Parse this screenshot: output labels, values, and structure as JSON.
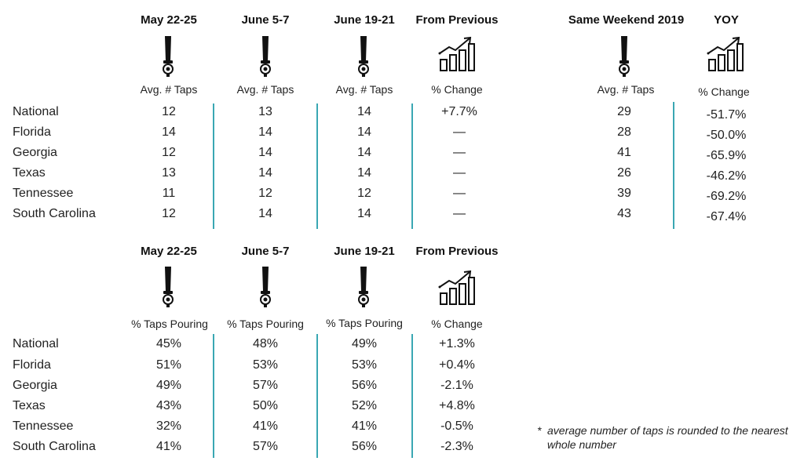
{
  "top": {
    "headers": [
      "May 22-25",
      "June 5-7",
      "June 19-21",
      "From Previous"
    ],
    "subheaders": [
      "Avg. # Taps",
      "Avg. # Taps",
      "Avg. # Taps",
      "% Change"
    ],
    "rows": [
      {
        "label": "National",
        "values": [
          "12",
          "13",
          "14",
          "+7.7%"
        ]
      },
      {
        "label": "Florida",
        "values": [
          "14",
          "14",
          "14",
          "—"
        ]
      },
      {
        "label": "Georgia",
        "values": [
          "12",
          "14",
          "14",
          "—"
        ]
      },
      {
        "label": "Texas",
        "values": [
          "13",
          "14",
          "14",
          "—"
        ]
      },
      {
        "label": "Tennessee",
        "values": [
          "11",
          "12",
          "12",
          "—"
        ]
      },
      {
        "label": "South Carolina",
        "values": [
          "12",
          "14",
          "14",
          "—"
        ]
      }
    ]
  },
  "yoy": {
    "headers": [
      "Same Weekend 2019",
      "YOY"
    ],
    "subheaders": [
      "Avg. # Taps",
      "% Change"
    ],
    "rows": [
      {
        "values": [
          "29",
          "-51.7%"
        ]
      },
      {
        "values": [
          "28",
          "-50.0%"
        ]
      },
      {
        "values": [
          "41",
          "-65.9%"
        ]
      },
      {
        "values": [
          "26",
          "-46.2%"
        ]
      },
      {
        "values": [
          "39",
          "-69.2%"
        ]
      },
      {
        "values": [
          "43",
          "-67.4%"
        ]
      }
    ]
  },
  "bottom": {
    "headers": [
      "May 22-25",
      "June 5-7",
      "June 19-21",
      "From Previous"
    ],
    "subheaders": [
      "% Taps Pouring",
      "% Taps Pouring",
      "% Taps Pouring",
      "% Change"
    ],
    "rows": [
      {
        "label": "National",
        "values": [
          "45%",
          "48%",
          "49%",
          "+1.3%"
        ]
      },
      {
        "label": "Florida",
        "values": [
          "51%",
          "53%",
          "53%",
          "+0.4%"
        ]
      },
      {
        "label": "Georgia",
        "values": [
          "49%",
          "57%",
          "56%",
          "-2.1%"
        ]
      },
      {
        "label": "Texas",
        "values": [
          "43%",
          "50%",
          "52%",
          "+4.8%"
        ]
      },
      {
        "label": "Tennessee",
        "values": [
          "32%",
          "41%",
          "41%",
          "-0.5%"
        ]
      },
      {
        "label": "South Carolina",
        "values": [
          "41%",
          "57%",
          "56%",
          "-2.3%"
        ]
      }
    ]
  },
  "footnote": {
    "marker": "*",
    "text": "average number of taps is rounded to the nearest whole number"
  },
  "icons": {
    "tap": "beer-tap-handle-icon",
    "chart": "growth-chart-icon"
  },
  "colors": {
    "divider": "#3aa7b3",
    "text": "#222222"
  }
}
